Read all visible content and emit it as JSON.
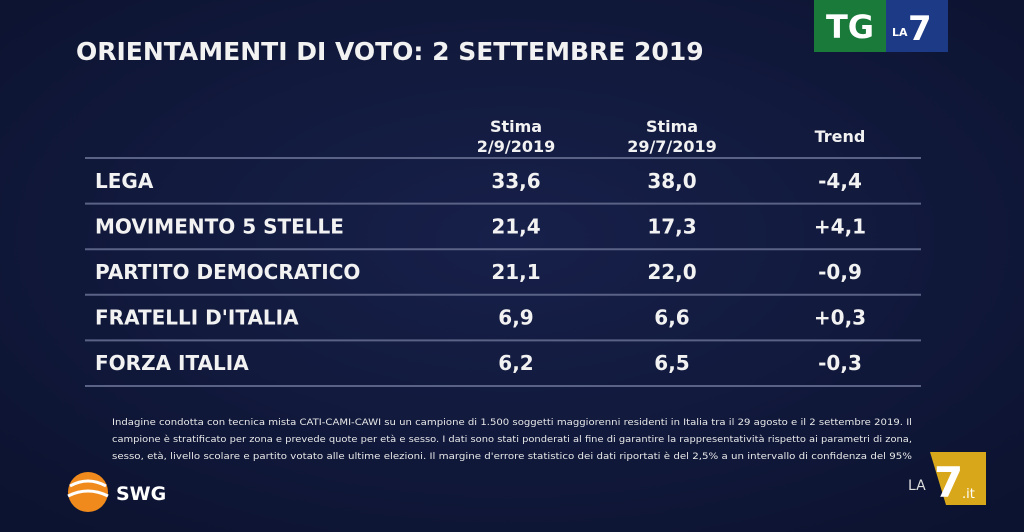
{
  "header": {
    "title": "ORIENTAMENTI DI VOTO: 2 SETTEMBRE 2019"
  },
  "logos": {
    "tg": "TG",
    "la7_top": {
      "la": "LA",
      "seven": "7"
    },
    "swg": "SWG",
    "la7_bottom": {
      "la": "LA",
      "seven": "7",
      "suffix": ".it"
    }
  },
  "table": {
    "columns": [
      {
        "line1": "Stima",
        "line2": "2/9/2019"
      },
      {
        "line1": "Stima",
        "line2": "29/7/2019"
      },
      {
        "line1": "Trend"
      }
    ],
    "rows": [
      [
        "LEGA",
        "33,6",
        "38,0",
        "-4,4"
      ],
      [
        "MOVIMENTO 5 STELLE",
        "21,4",
        "17,3",
        "+4,1"
      ],
      [
        "PARTITO DEMOCRATICO",
        "21,1",
        "22,0",
        "-0,9"
      ],
      [
        "FRATELLI D'ITALIA",
        "6,9",
        "6,6",
        "+0,3"
      ],
      [
        "FORZA ITALIA",
        "6,2",
        "6,5",
        "-0,3"
      ]
    ]
  },
  "footnote": [
    "Indagine condotta con tecnica mista CATI-CAMI-CAWI su un campione di 1.500 soggetti maggiorenni residenti in Italia tra il 29 agosto e il  2 settembre 2019. Il",
    "campione è stratificato per zona e prevede quote per età e sesso. I dati sono stati ponderati al fine di garantire la rappresentatività rispetto ai parametri di zona,",
    "sesso, età, livello scolare e partito votato alle ultime elezioni. Il margine d'errore statistico dei dati riportati è del 2,5% a un intervallo di confidenza del 95%"
  ]
}
